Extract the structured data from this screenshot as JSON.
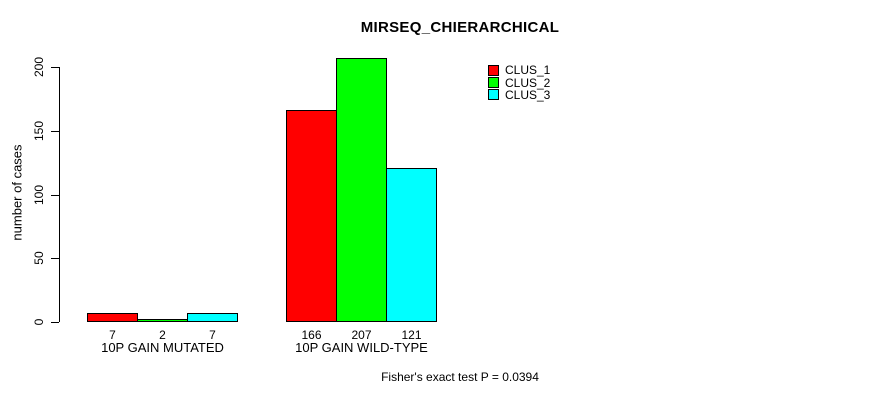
{
  "chart_data": {
    "type": "bar",
    "title": "MIRSEQ_CHIERARCHICAL",
    "ylabel": "number of cases",
    "xlabel": "",
    "categories": [
      "10P GAIN MUTATED",
      "10P GAIN WILD-TYPE"
    ],
    "series": [
      {
        "name": "CLUS_1",
        "color": "#ff0000",
        "values": [
          7,
          166
        ]
      },
      {
        "name": "CLUS_2",
        "color": "#00ff00",
        "values": [
          2,
          207
        ]
      },
      {
        "name": "CLUS_3",
        "color": "#00ffff",
        "values": [
          7,
          121
        ]
      }
    ],
    "ylim": [
      0,
      200
    ],
    "yticks": [
      0,
      50,
      100,
      150,
      200
    ],
    "grid": false,
    "legend": [
      "CLUS_1",
      "CLUS_2",
      "CLUS_3"
    ],
    "legend_position": "inside-top-right",
    "bar_value_labels_shown": true,
    "annotation": "Fisher's exact test P = 0.0394",
    "colors": {
      "background": "#ffffff",
      "axis": "#000000",
      "text": "#000000"
    }
  }
}
